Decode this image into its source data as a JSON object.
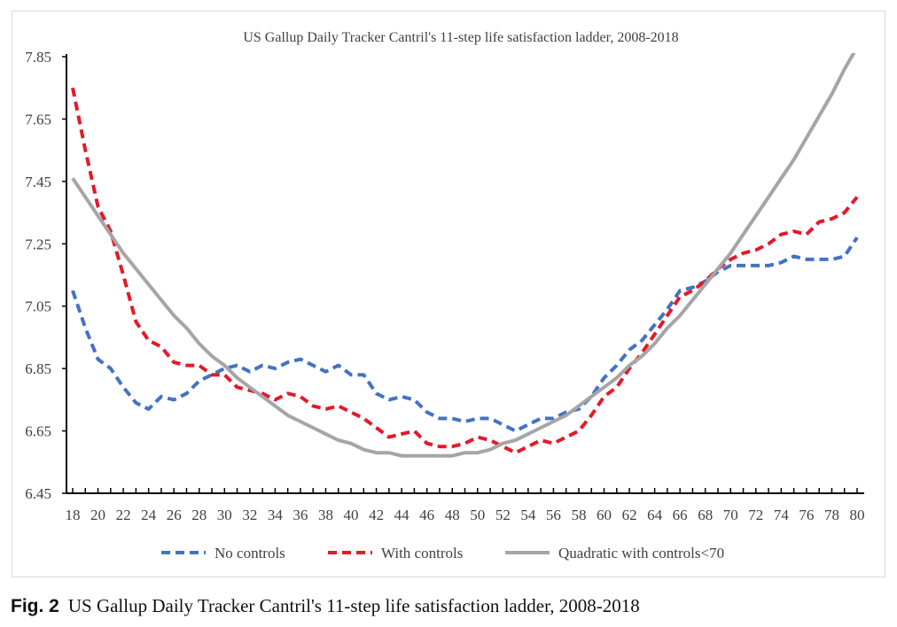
{
  "chart_data": {
    "type": "line",
    "title": "US Gallup Daily Tracker Cantril's 11-step life satisfaction ladder, 2008-2018",
    "xlabel": "",
    "ylabel": "",
    "xlim": [
      18,
      80
    ],
    "ylim": [
      6.45,
      7.85
    ],
    "yticks": [
      "6.45",
      "6.65",
      "6.85",
      "7.05",
      "7.25",
      "7.45",
      "7.65",
      "7.85"
    ],
    "xticks": [
      "18",
      "20",
      "22",
      "24",
      "26",
      "28",
      "30",
      "32",
      "34",
      "36",
      "38",
      "40",
      "42",
      "44",
      "46",
      "48",
      "50",
      "52",
      "54",
      "56",
      "58",
      "60",
      "62",
      "64",
      "66",
      "68",
      "70",
      "72",
      "74",
      "76",
      "78",
      "80"
    ],
    "grid": false,
    "legend_position": "bottom",
    "x_start": 18,
    "series": [
      {
        "name": "No controls",
        "color": "#4472c4",
        "style": "dashed",
        "values": [
          7.1,
          6.98,
          6.88,
          6.85,
          6.79,
          6.74,
          6.72,
          6.76,
          6.75,
          6.77,
          6.81,
          6.83,
          6.85,
          6.86,
          6.84,
          6.86,
          6.85,
          6.87,
          6.88,
          6.86,
          6.84,
          6.86,
          6.83,
          6.83,
          6.77,
          6.75,
          6.76,
          6.75,
          6.71,
          6.69,
          6.69,
          6.68,
          6.69,
          6.69,
          6.67,
          6.65,
          6.67,
          6.69,
          6.69,
          6.71,
          6.72,
          6.76,
          6.82,
          6.86,
          6.91,
          6.94,
          6.99,
          7.04,
          7.1,
          7.11,
          7.13,
          7.16,
          7.18,
          7.18,
          7.18,
          7.18,
          7.19,
          7.21,
          7.2,
          7.2,
          7.2,
          7.21,
          7.27
        ]
      },
      {
        "name": "With controls",
        "color": "#e31a2a",
        "style": "dashed",
        "values": [
          7.75,
          7.55,
          7.37,
          7.29,
          7.15,
          7.0,
          6.94,
          6.92,
          6.87,
          6.86,
          6.86,
          6.83,
          6.83,
          6.79,
          6.78,
          6.77,
          6.75,
          6.77,
          6.76,
          6.73,
          6.72,
          6.73,
          6.71,
          6.69,
          6.66,
          6.63,
          6.64,
          6.65,
          6.61,
          6.6,
          6.6,
          6.61,
          6.63,
          6.62,
          6.6,
          6.58,
          6.6,
          6.62,
          6.61,
          6.63,
          6.65,
          6.7,
          6.76,
          6.79,
          6.85,
          6.9,
          6.96,
          7.02,
          7.08,
          7.1,
          7.13,
          7.17,
          7.2,
          7.22,
          7.23,
          7.25,
          7.28,
          7.29,
          7.28,
          7.32,
          7.33,
          7.35,
          7.4
        ]
      },
      {
        "name": "Quadratic with controls<70",
        "color": "#a5a5a5",
        "style": "solid",
        "values": [
          7.46,
          7.4,
          7.34,
          7.28,
          7.22,
          7.17,
          7.12,
          7.07,
          7.02,
          6.98,
          6.93,
          6.89,
          6.86,
          6.82,
          6.79,
          6.76,
          6.73,
          6.7,
          6.68,
          6.66,
          6.64,
          6.62,
          6.61,
          6.59,
          6.58,
          6.58,
          6.57,
          6.57,
          6.57,
          6.57,
          6.57,
          6.58,
          6.58,
          6.59,
          6.61,
          6.62,
          6.64,
          6.66,
          6.68,
          6.7,
          6.73,
          6.76,
          6.79,
          6.82,
          6.86,
          6.89,
          6.93,
          6.98,
          7.02,
          7.07,
          7.12,
          7.17,
          7.22,
          7.28,
          7.34,
          7.4,
          7.46,
          7.52,
          7.59,
          7.66,
          7.73,
          7.81,
          7.88
        ]
      }
    ]
  },
  "caption": {
    "label": "Fig. 2",
    "text": "US Gallup Daily Tracker Cantril's 11-step life satisfaction ladder, 2008-2018"
  }
}
